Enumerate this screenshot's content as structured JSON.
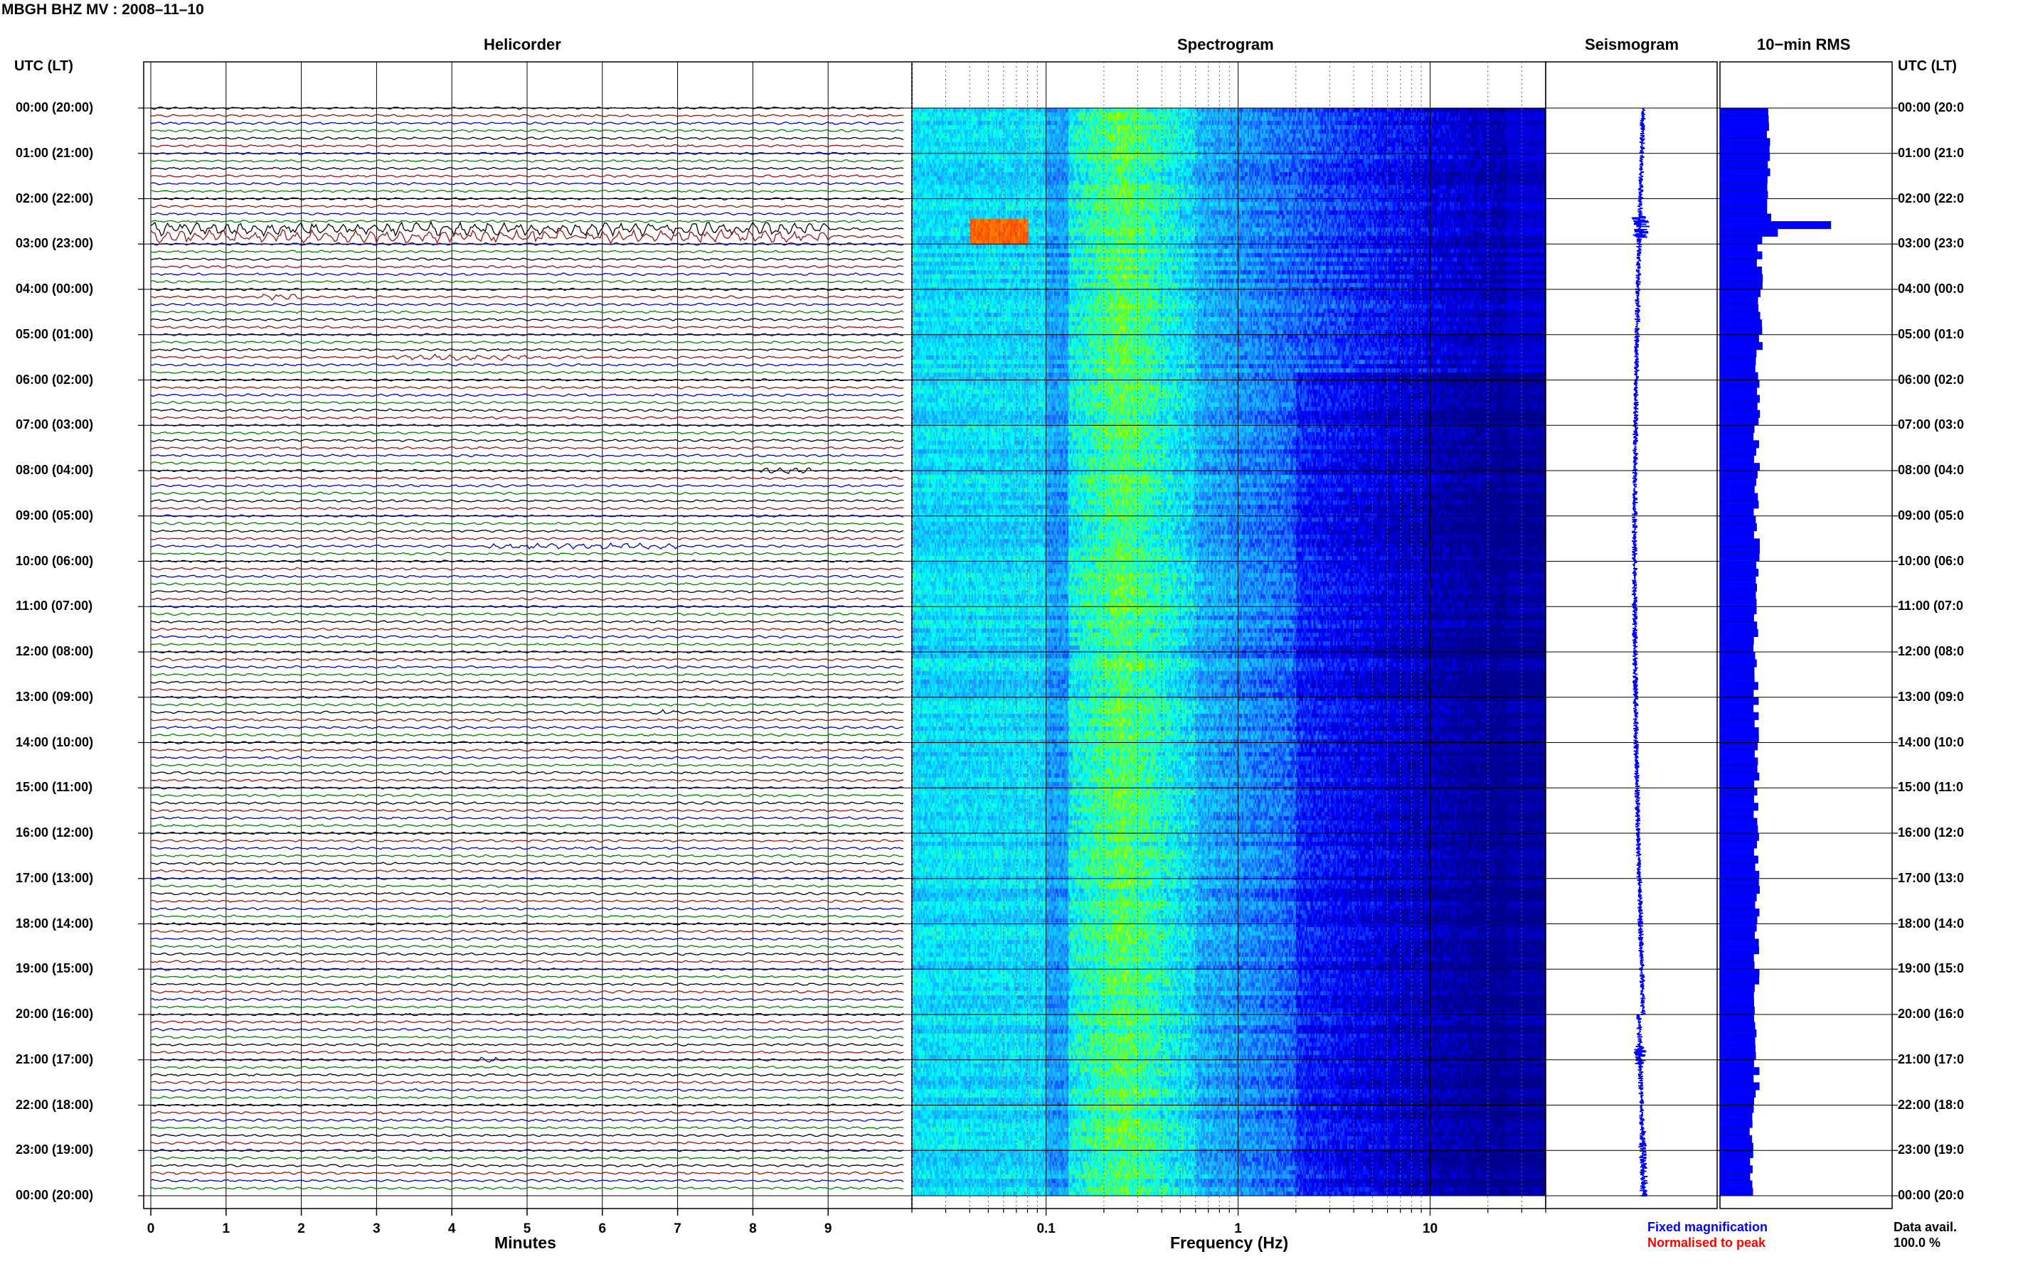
{
  "page": {
    "title": "MBGH BHZ MV : 2008–11–10",
    "time_axis_label_left": "UTC (LT)",
    "time_axis_label_right": "UTC (LT)"
  },
  "time_ticks": [
    "00:00 (20:00)",
    "01:00 (21:00)",
    "02:00 (22:00)",
    "03:00 (23:00)",
    "04:00 (00:00)",
    "05:00 (01:00)",
    "06:00 (02:00)",
    "07:00 (03:00)",
    "08:00 (04:00)",
    "09:00 (05:00)",
    "10:00 (06:00)",
    "11:00 (07:00)",
    "12:00 (08:00)",
    "13:00 (09:00)",
    "14:00 (10:00)",
    "15:00 (11:00)",
    "16:00 (12:00)",
    "17:00 (13:00)",
    "18:00 (14:00)",
    "19:00 (15:00)",
    "20:00 (16:00)",
    "21:00 (17:00)",
    "22:00 (18:00)",
    "23:00 (19:00)",
    "00:00 (20:00)"
  ],
  "right_time_ticks": [
    "00:00 (20:0",
    "01:00 (21:0",
    "02:00 (22:0",
    "03:00 (23:0",
    "04:00 (00:0",
    "05:00 (01:0",
    "06:00 (02:0",
    "07:00 (03:0",
    "08:00 (04:0",
    "09:00 (05:0",
    "10:00 (06:0",
    "11:00 (07:0",
    "12:00 (08:0",
    "13:00 (09:0",
    "14:00 (10:0",
    "15:00 (11:0",
    "16:00 (12:0",
    "17:00 (13:0",
    "18:00 (14:0",
    "19:00 (15:0",
    "20:00 (16:0",
    "21:00 (17:0",
    "22:00 (18:0",
    "23:00 (19:0",
    "00:00 (20:0"
  ],
  "chart_data": [
    {
      "type": "line",
      "title": "Helicorder",
      "xlabel": "Minutes",
      "ylabel": "UTC (LT)",
      "xlim": [
        0,
        10
      ],
      "x_ticks": [
        "0",
        "1",
        "2",
        "3",
        "4",
        "5",
        "6",
        "7",
        "8",
        "9"
      ],
      "traces": 144,
      "trace_minutes": 10,
      "trace_colors": [
        "#000000",
        "#a01010",
        "#0000c0",
        "#008000"
      ],
      "events": [
        {
          "hour": 2.6,
          "start_min": 0,
          "end_min": 9,
          "amplitude": "high"
        },
        {
          "hour": 2.85,
          "start_min": 0,
          "end_min": 9,
          "amplitude": "high"
        },
        {
          "hour": 4.1,
          "start_min": 1.5,
          "end_min": 2.0,
          "amplitude": "medium"
        },
        {
          "hour": 5.45,
          "start_min": 3.2,
          "end_min": 5.0,
          "amplitude": "medium"
        },
        {
          "hour": 8.0,
          "start_min": 8.1,
          "end_min": 8.8,
          "amplitude": "medium"
        },
        {
          "hour": 9.65,
          "start_min": 4.5,
          "end_min": 7.0,
          "amplitude": "medium"
        },
        {
          "hour": 13.35,
          "start_min": 6.6,
          "end_min": 7.0,
          "amplitude": "medium"
        },
        {
          "hour": 20.95,
          "start_min": 4.3,
          "end_min": 4.6,
          "amplitude": "medium"
        }
      ],
      "grid": true
    },
    {
      "type": "heatmap",
      "title": "Spectrogram",
      "xlabel": "Frequency (Hz)",
      "x_scale": "log",
      "xlim": [
        0.02,
        40
      ],
      "x_ticks": [
        "0.1",
        "1",
        "10"
      ],
      "ylim_hours": [
        0,
        24
      ],
      "colormap": [
        "#00008b",
        "#0000ff",
        "#1e90ff",
        "#00ffff",
        "#7fff00",
        "#ffff00",
        "#ff8c00",
        "#ff0000"
      ],
      "hotspot": {
        "hour_start": 2.4,
        "hour_end": 3.0,
        "freq_start": 0.04,
        "freq_end": 0.08
      }
    },
    {
      "type": "line",
      "title": "Seismogram",
      "color": "#0000ff",
      "legend": [
        "Fixed magnification",
        "Normalised to peak"
      ],
      "legend_colors": [
        "#0000ff",
        "#ff0000"
      ]
    },
    {
      "type": "bar",
      "title": "10−min RMS",
      "orientation": "horizontal",
      "color": "#0000ff",
      "bins_per_hour": 6,
      "peak": {
        "hour": 2.5,
        "relative": 1.0
      },
      "baseline_relative": 0.34
    }
  ],
  "footer": {
    "data_avail_label": "Data avail.",
    "data_avail_value": "100.0 %"
  }
}
